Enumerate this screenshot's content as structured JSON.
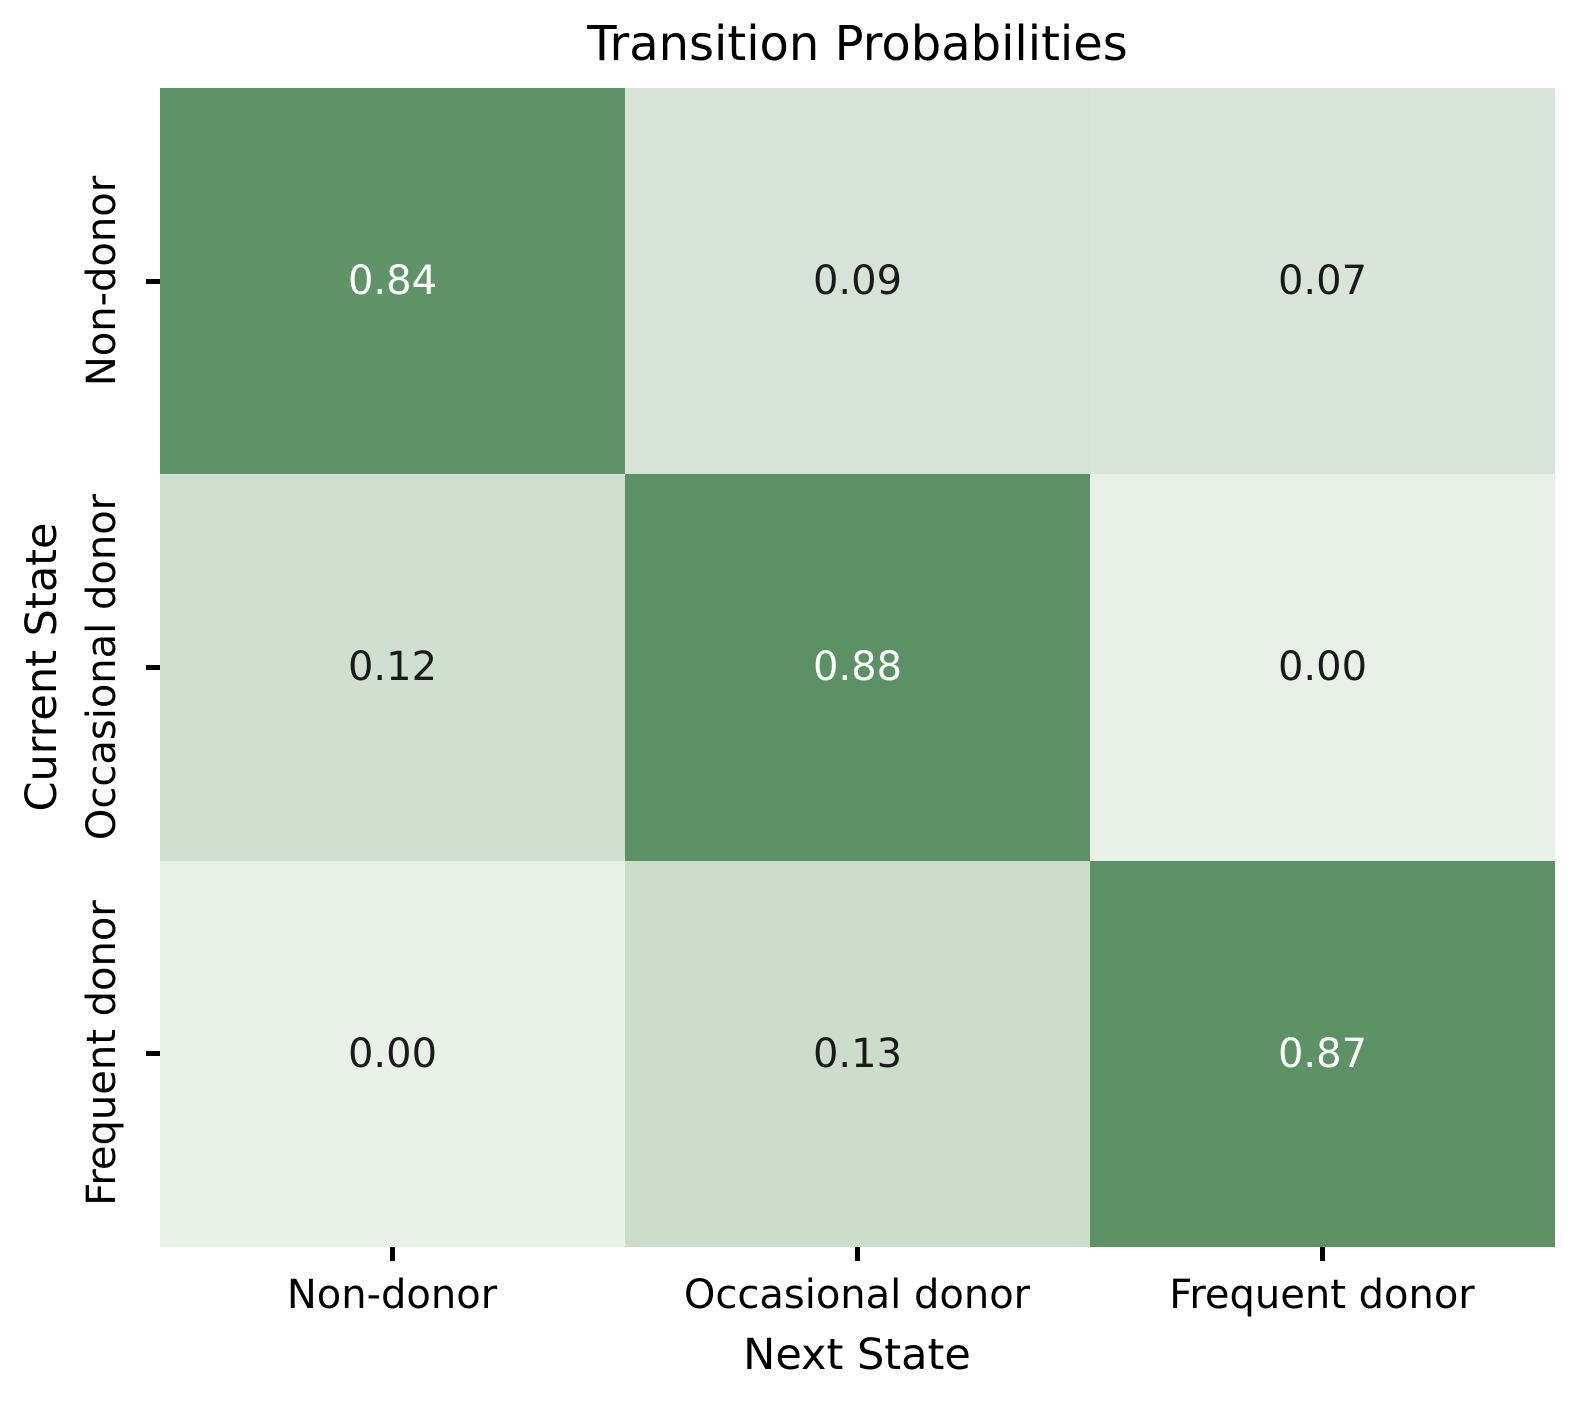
{
  "chart_data": {
    "type": "heatmap",
    "title": "Transition Probabilities",
    "xlabel": "Next State",
    "ylabel": "Current State",
    "x_categories": [
      "Non-donor",
      "Occasional donor",
      "Frequent donor"
    ],
    "y_categories": [
      "Non-donor",
      "Occasional donor",
      "Frequent donor"
    ],
    "values": [
      [
        0.84,
        0.09,
        0.07
      ],
      [
        0.12,
        0.88,
        0.0
      ],
      [
        0.0,
        0.13,
        0.87
      ]
    ],
    "cell_labels": [
      [
        "0.84",
        "0.09",
        "0.07"
      ],
      [
        "0.12",
        "0.88",
        "0.00"
      ],
      [
        "0.00",
        "0.13",
        "0.87"
      ]
    ],
    "cell_colors": [
      [
        "#5f9468",
        "#d6e3d6",
        "#d9e5d9"
      ],
      [
        "#cfdfd0",
        "#5b9164",
        "#e8f0e8"
      ],
      [
        "#e8f0e8",
        "#ccddcc",
        "#5c9266"
      ]
    ],
    "cell_text_colors": [
      [
        "#ffffff",
        "#1a1a1a",
        "#1a1a1a"
      ],
      [
        "#1a1a1a",
        "#ffffff",
        "#1a1a1a"
      ],
      [
        "#1a1a1a",
        "#1a1a1a",
        "#ffffff"
      ]
    ],
    "colormap": "Greens",
    "vmin": 0,
    "vmax": 0.88,
    "annotated": true,
    "grid": false,
    "legend": "none",
    "colorbar": false
  },
  "styles": {
    "background": "#ffffff",
    "tick_color": "#000000",
    "text_color": "#000000"
  }
}
